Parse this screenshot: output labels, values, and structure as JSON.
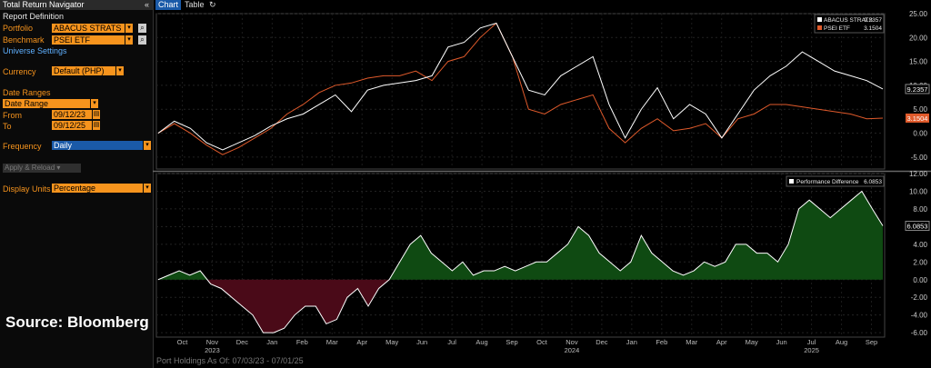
{
  "panel": {
    "title": "Total Return Navigator",
    "collapse_icon": "double-chevron-left-icon",
    "report_definition": "Report Definition",
    "portfolio_label": "Portfolio",
    "portfolio_value": "ABACUS STRATS",
    "benchmark_label": "Benchmark",
    "benchmark_value": "PSEI ETF",
    "universe_settings": "Universe Settings",
    "currency_label": "Currency",
    "currency_value": "Default (PHP)",
    "date_ranges_label": "Date Ranges",
    "date_range_value": "Date Range",
    "from_label": "From",
    "from_value": "09/12/23",
    "to_label": "To",
    "to_value": "09/12/25",
    "frequency_label": "Frequency",
    "frequency_value": "Daily",
    "apply_label": "Apply & Reload",
    "display_units_label": "Display Units",
    "display_units_value": "Percentage",
    "source": "Source: Bloomberg"
  },
  "tabs": {
    "chart": "Chart",
    "table": "Table",
    "refresh_icon": "refresh-icon"
  },
  "footer": "Port Holdings As Of: 07/03/23 - 07/01/25",
  "colors": {
    "portfolio": "#ffffff",
    "benchmark": "#e05a2b",
    "accent": "#f7941d",
    "positive_fill": "#0f4a12",
    "negative_fill": "#4a0a18"
  },
  "chart_data": {
    "type": "line",
    "x_months": [
      "Oct",
      "Nov",
      "Dec",
      "Jan",
      "Feb",
      "Mar",
      "Apr",
      "May",
      "Jun",
      "Jul",
      "Aug",
      "Sep",
      "Oct",
      "Nov",
      "Dec",
      "Jan",
      "Feb",
      "Mar",
      "Apr",
      "May",
      "Jun",
      "Jul",
      "Aug",
      "Sep"
    ],
    "x_years": [
      "2023",
      "2024",
      "2025"
    ],
    "top": {
      "ylim": [
        -7.5,
        25
      ],
      "yticks": [
        "25.00",
        "20.00",
        "15.00",
        "10.00",
        "5.00",
        "0.00",
        "-5.00"
      ],
      "yticks_values": [
        25,
        20,
        15,
        10,
        5,
        0,
        -5
      ],
      "series": [
        {
          "name": "ABACUS STRATS",
          "last": "9.2357",
          "values": [
            0,
            2.5,
            1,
            -2,
            -3.5,
            -2,
            -0.5,
            1.5,
            3,
            4,
            6,
            8,
            4.5,
            9,
            10,
            10.5,
            11,
            12,
            18,
            19,
            22,
            23,
            16,
            9,
            8,
            12,
            14,
            16,
            6,
            -1,
            5,
            9.5,
            3,
            6,
            4,
            -1,
            4,
            9,
            12,
            14,
            17,
            15,
            13,
            12,
            11,
            9.2357
          ]
        },
        {
          "name": "PSEI ETF",
          "last": "3.1504",
          "values": [
            0,
            2,
            0,
            -2.5,
            -4.5,
            -3,
            -1,
            1,
            4,
            6,
            8.5,
            10,
            10.5,
            11.5,
            12,
            12,
            13,
            11,
            15,
            16,
            20,
            23,
            16,
            5,
            4,
            6,
            7,
            8,
            1,
            -2,
            1,
            3,
            0.5,
            1,
            2,
            -1,
            3,
            4,
            6,
            6,
            5.5,
            5,
            4.5,
            4,
            3,
            3.1504
          ]
        }
      ]
    },
    "bottom": {
      "ylim": [
        -6.5,
        12
      ],
      "yticks": [
        "12.00",
        "10.00",
        "8.00",
        "6.00",
        "4.00",
        "2.00",
        "0.00",
        "-2.00",
        "-4.00",
        "-6.00"
      ],
      "yticks_values": [
        12,
        10,
        8,
        6,
        4,
        2,
        0,
        -2,
        -4,
        -6
      ],
      "series": [
        {
          "name": "Performance Difference",
          "last": "6.0853",
          "values": [
            0,
            0.5,
            1,
            0.5,
            1,
            -0.5,
            -1,
            -2,
            -3,
            -4,
            -6,
            -6,
            -5.5,
            -4,
            -3,
            -3,
            -5,
            -4.5,
            -2,
            -1,
            -3,
            -1,
            0,
            2,
            4,
            5,
            3,
            2,
            1,
            2,
            0.5,
            1,
            1,
            1.5,
            1,
            1.5,
            2,
            2,
            3,
            4,
            6,
            5,
            3,
            2,
            1,
            2,
            5,
            3,
            2,
            1,
            0.5,
            1,
            2,
            1.5,
            2,
            4,
            4,
            3,
            3,
            2,
            4,
            8,
            9,
            8,
            7,
            8,
            9,
            10,
            8,
            6.0853
          ]
        }
      ]
    }
  }
}
